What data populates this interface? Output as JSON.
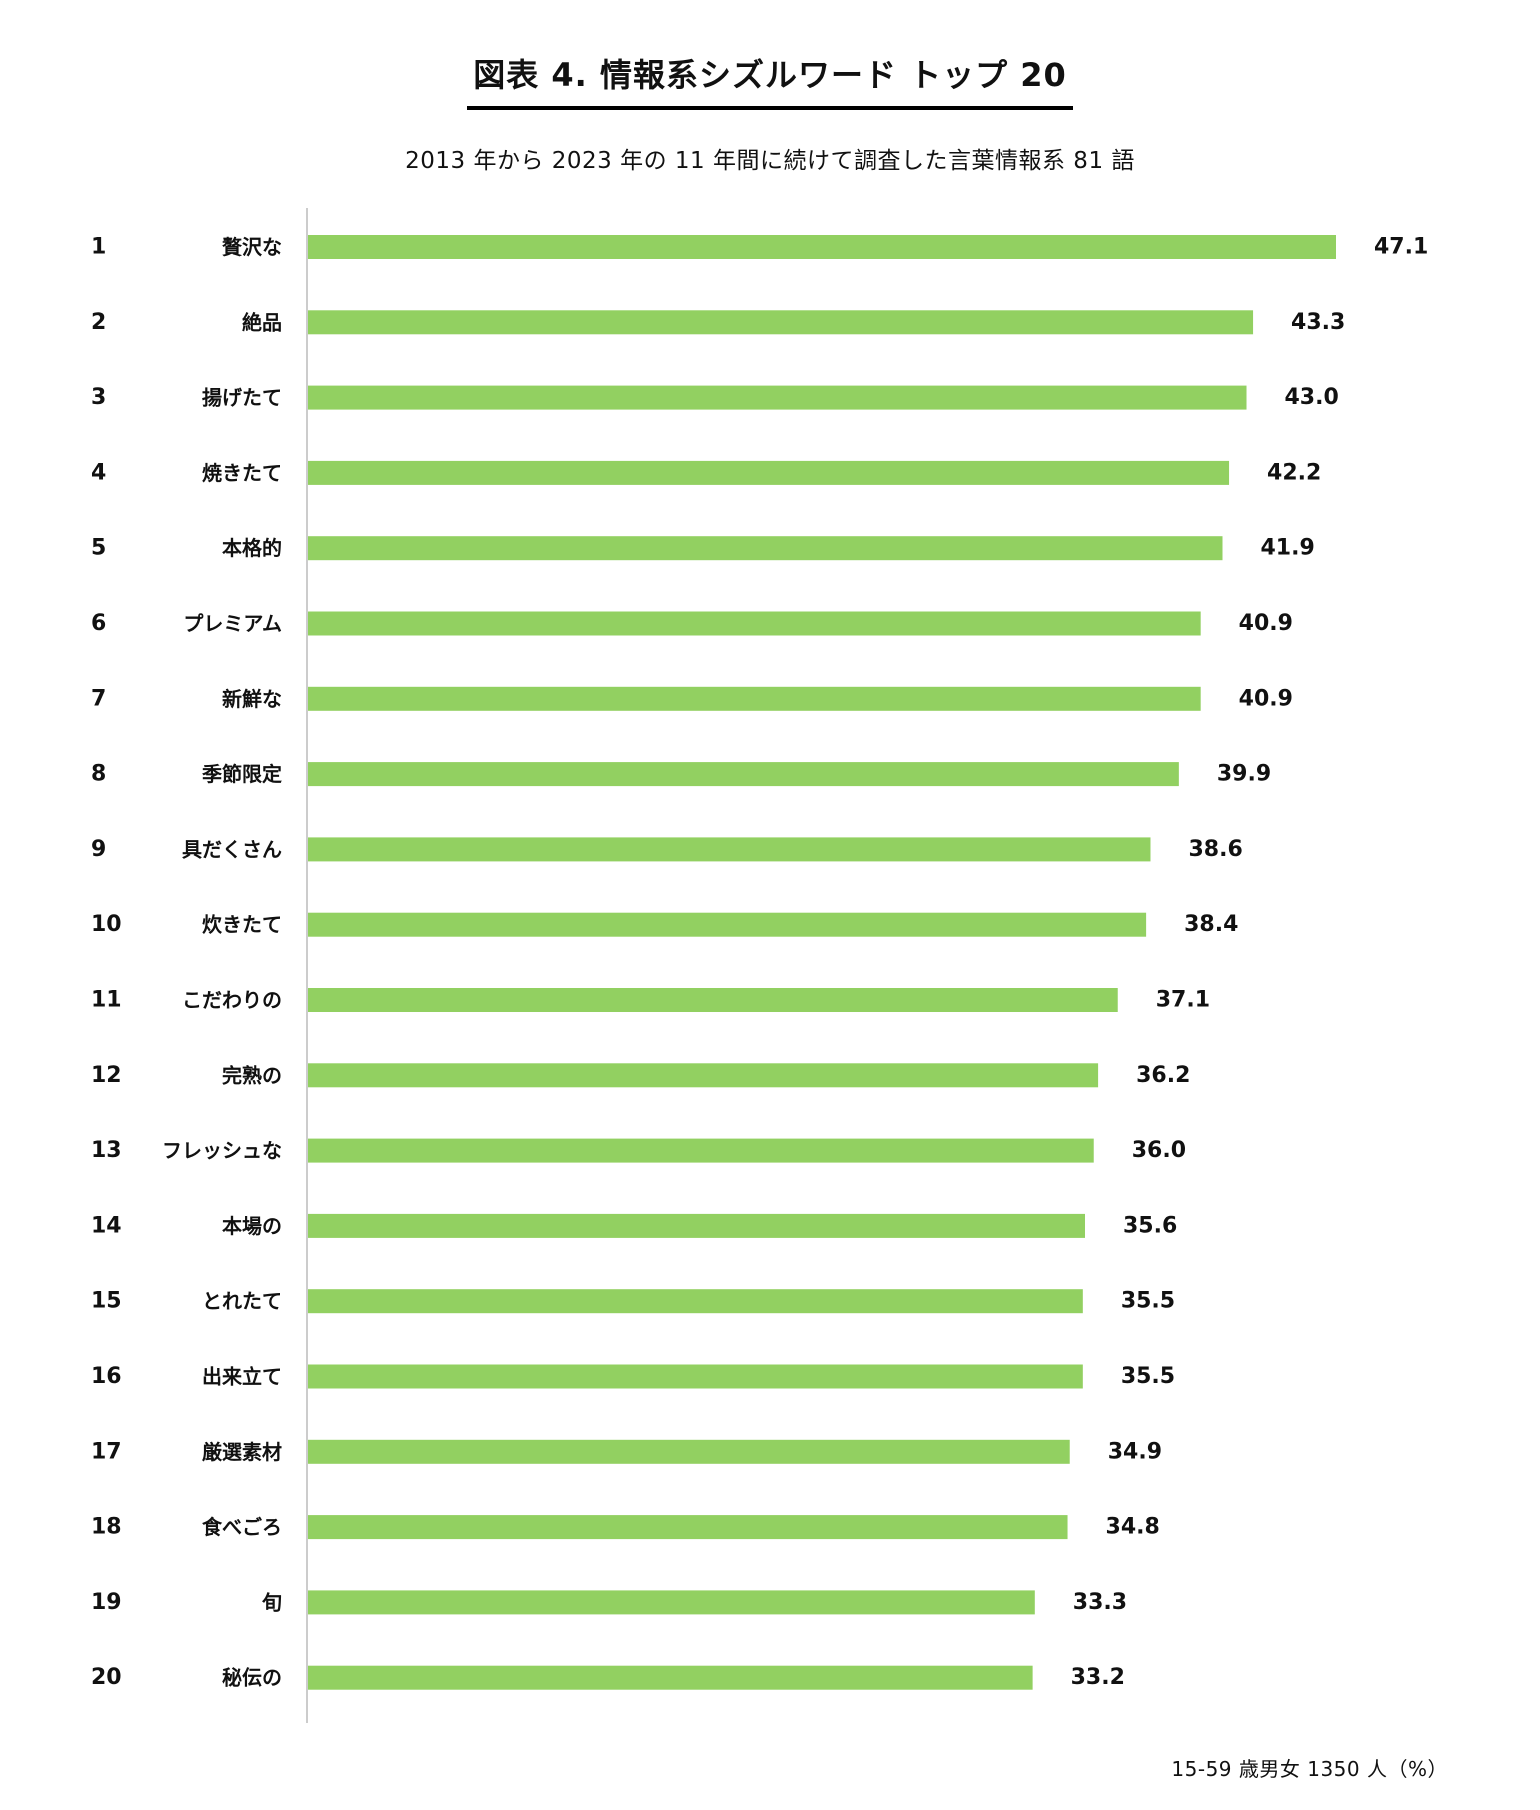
{
  "chart_data": {
    "type": "bar",
    "orientation": "horizontal",
    "title": "図表 4.  情報系シズルワード トップ 20",
    "subtitle": "2013 年から 2023 年の 11 年間に続けて調査した言葉情報系 81 語",
    "ranks": [
      "1",
      "2",
      "3",
      "4",
      "5",
      "6",
      "7",
      "8",
      "9",
      "10",
      "11",
      "12",
      "13",
      "14",
      "15",
      "16",
      "17",
      "18",
      "19",
      "20"
    ],
    "categories": [
      "贅沢な",
      "絶品",
      "揚げたて",
      "焼きたて",
      "本格的",
      "プレミアム",
      "新鮮な",
      "季節限定",
      "具だくさん",
      "炊きたて",
      "こだわりの",
      "完熟の",
      "フレッシュな",
      "本場の",
      "とれたて",
      "出来立て",
      "厳選素材",
      "食べごろ",
      "旬",
      "秘伝の"
    ],
    "values": [
      47.1,
      43.3,
      43.0,
      42.2,
      41.9,
      40.9,
      40.9,
      39.9,
      38.6,
      38.4,
      37.1,
      36.2,
      36.0,
      35.6,
      35.5,
      35.5,
      34.9,
      34.8,
      33.3,
      33.2
    ],
    "value_labels": [
      "47.1",
      "43.3",
      "43.0",
      "42.2",
      "41.9",
      "40.9",
      "40.9",
      "39.9",
      "38.6",
      "38.4",
      "37.1",
      "36.2",
      "36.0",
      "35.6",
      "35.5",
      "35.5",
      "34.9",
      "34.8",
      "33.3",
      "33.2"
    ],
    "footnote": "15-59 歳男女 1350 人（%）",
    "bar_color": "#92d061",
    "axis_color": "#bbbbbb",
    "grid": false,
    "legend": "none"
  }
}
